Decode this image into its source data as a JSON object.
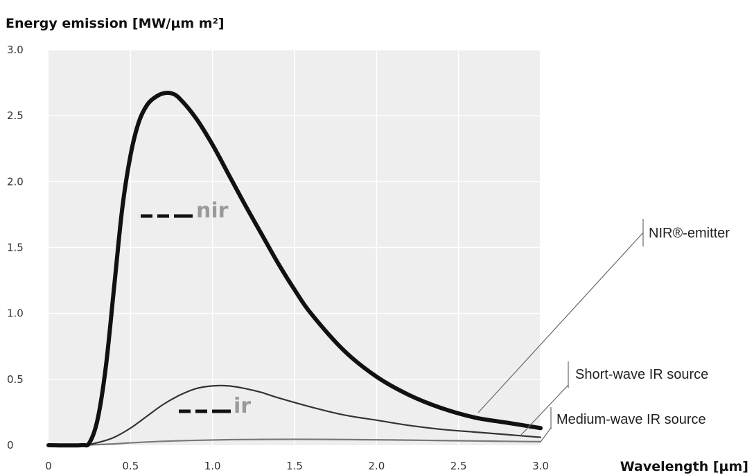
{
  "chart_data": {
    "type": "line",
    "ylabel": "Energy emission [MW/µm m²]",
    "xlabel": "Wavelength [µm]",
    "xlim": [
      0,
      3.0
    ],
    "ylim": [
      0,
      3.0
    ],
    "x_ticks": [
      "0",
      "0.5",
      "1.0",
      "1.5",
      "2.0",
      "2.5",
      "3.0"
    ],
    "y_ticks": [
      "0",
      "0.5",
      "1.0",
      "1.5",
      "2.0",
      "2.5",
      "3.0"
    ],
    "grid": true,
    "series": [
      {
        "name": "NIR®-emitter",
        "color": "#111111",
        "x": [
          0,
          0.2,
          0.25,
          0.3,
          0.35,
          0.4,
          0.45,
          0.5,
          0.55,
          0.6,
          0.65,
          0.7,
          0.75,
          0.8,
          0.9,
          1.0,
          1.1,
          1.2,
          1.3,
          1.4,
          1.5,
          1.6,
          1.8,
          2.0,
          2.2,
          2.4,
          2.6,
          2.8,
          3.0
        ],
        "y": [
          0,
          0,
          0.02,
          0.2,
          0.6,
          1.2,
          1.8,
          2.2,
          2.45,
          2.58,
          2.64,
          2.67,
          2.67,
          2.63,
          2.48,
          2.28,
          2.05,
          1.82,
          1.6,
          1.38,
          1.18,
          1.0,
          0.72,
          0.52,
          0.38,
          0.28,
          0.21,
          0.17,
          0.13
        ]
      },
      {
        "name": "Short-wave IR source",
        "color": "#333333",
        "x": [
          0,
          0.2,
          0.3,
          0.4,
          0.5,
          0.6,
          0.7,
          0.8,
          0.9,
          1.0,
          1.1,
          1.2,
          1.3,
          1.4,
          1.6,
          1.8,
          2.0,
          2.2,
          2.4,
          2.6,
          2.8,
          3.0
        ],
        "y": [
          0,
          0,
          0.02,
          0.06,
          0.13,
          0.22,
          0.31,
          0.38,
          0.43,
          0.45,
          0.45,
          0.43,
          0.4,
          0.36,
          0.29,
          0.23,
          0.19,
          0.15,
          0.12,
          0.1,
          0.08,
          0.06
        ]
      },
      {
        "name": "Medium-wave IR source",
        "color": "#777777",
        "x": [
          0,
          0.2,
          0.3,
          0.4,
          0.5,
          0.7,
          0.9,
          1.1,
          1.3,
          1.5,
          1.7,
          1.9,
          2.1,
          2.3,
          2.5,
          2.7,
          2.9,
          3.0
        ],
        "y": [
          0,
          0,
          0.005,
          0.01,
          0.018,
          0.03,
          0.037,
          0.042,
          0.044,
          0.045,
          0.044,
          0.042,
          0.04,
          0.037,
          0.034,
          0.031,
          0.028,
          0.027
        ]
      }
    ],
    "annotations": [
      "NIR®-emitter",
      "Short-wave IR source",
      "Medium-wave IR source"
    ],
    "brand_labels": [
      "nir",
      "ir"
    ]
  }
}
